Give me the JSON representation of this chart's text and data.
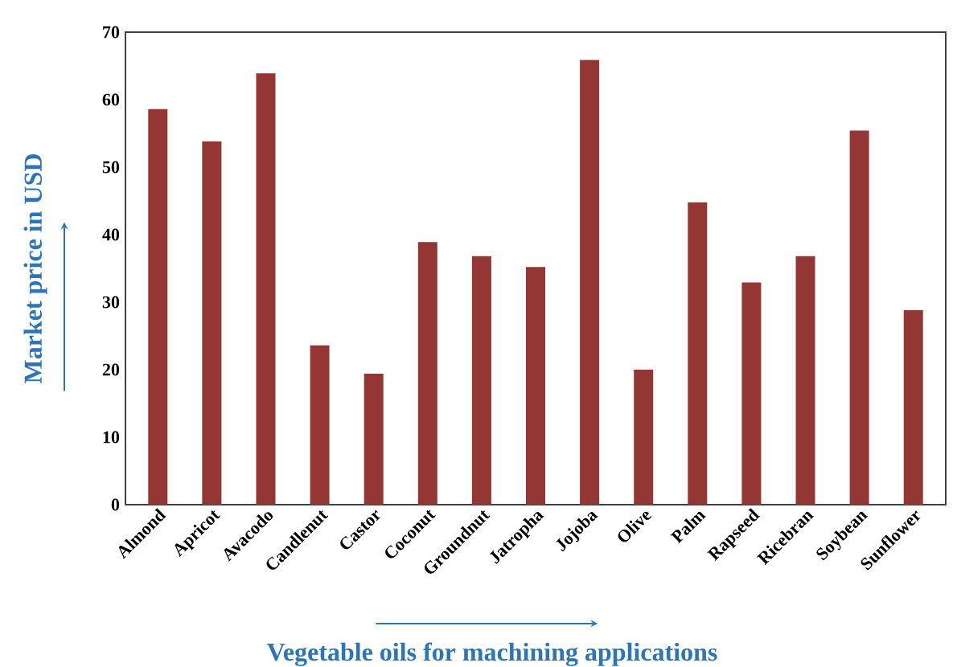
{
  "chart_data": {
    "type": "bar",
    "xlabel": "Vegetable oils for machining applications",
    "ylabel": "Market price in USD",
    "categories": [
      "Almond",
      "Apricot",
      "Avacodo",
      "Candlenut",
      "Castor",
      "Coconut",
      "Groundnut",
      "Jatropha",
      "Jojoba",
      "Olive",
      "Palm",
      "Rapseed",
      "Ricebran",
      "Soybean",
      "Sunflower"
    ],
    "values": [
      58.6,
      53.8,
      63.9,
      23.6,
      19.4,
      38.9,
      36.8,
      35.2,
      65.9,
      20,
      44.8,
      32.9,
      36.8,
      55.4,
      28.8
    ],
    "color": "#943634",
    "ylim": [
      0,
      70
    ],
    "yticks": [
      0,
      10,
      20,
      30,
      40,
      50,
      60,
      70
    ],
    "grid": false
  }
}
